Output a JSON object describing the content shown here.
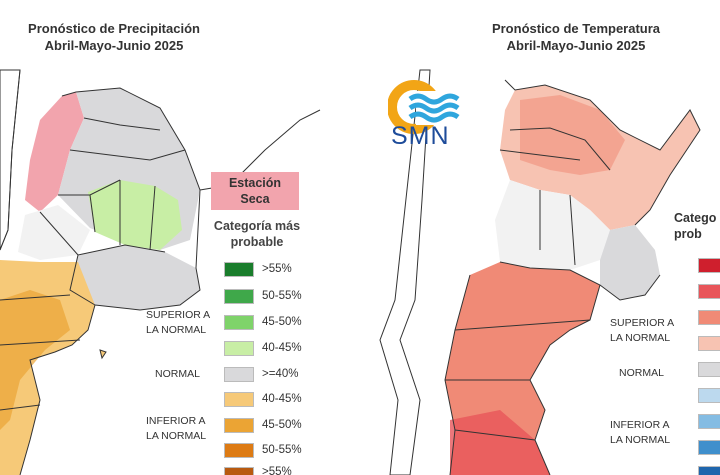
{
  "left_panel": {
    "title_line1": "Pronóstico de Precipitación",
    "title_line2": "Abril-Mayo-Junio 2025",
    "estacion_seca": [
      "Estación",
      "Seca"
    ],
    "legend_title": [
      "Categoría más",
      "probable"
    ],
    "legend": [
      {
        "label": ">55%",
        "color": "#1a7d2c"
      },
      {
        "label": "50-55%",
        "color": "#3fa84a"
      },
      {
        "label": "45-50%",
        "color": "#7fd36a"
      },
      {
        "label": "40-45%",
        "color": "#c8eea5"
      },
      {
        "label": ">=40%",
        "color": "#d9d9db"
      },
      {
        "label": "40-45%",
        "color": "#f6c978"
      },
      {
        "label": "45-50%",
        "color": "#eba434"
      },
      {
        "label": "50-55%",
        "color": "#dd7b14"
      },
      {
        "label": ">55%",
        "color": "#b85a10"
      }
    ],
    "groups": {
      "superior": [
        "SUPERIOR A",
        "LA NORMAL"
      ],
      "normal": "NORMAL",
      "inferior": [
        "INFERIOR A",
        "LA NORMAL"
      ]
    }
  },
  "right_panel": {
    "title_line1": "Pronóstico de Temperatura",
    "title_line2": "Abril-Mayo-Junio 2025",
    "legend_title": [
      "Catego",
      "prob"
    ],
    "legend": [
      {
        "color": "#cf1f2d"
      },
      {
        "color": "#e8555a"
      },
      {
        "color": "#f08a76"
      },
      {
        "color": "#f7c3b2"
      },
      {
        "color": "#d9d9db"
      },
      {
        "color": "#bcd9ee"
      },
      {
        "color": "#84bce3"
      },
      {
        "color": "#3f8fcc"
      },
      {
        "color": "#1f66ad"
      }
    ],
    "groups": {
      "superior": [
        "SUPERIOR A",
        "LA NORMAL"
      ],
      "normal": "NORMAL",
      "inferior": [
        "INFERIOR A",
        "LA NORMAL"
      ]
    }
  },
  "logo": {
    "text": "SMN",
    "colors": {
      "sun": "#f2a516",
      "waves": "#2fa6dd"
    }
  }
}
